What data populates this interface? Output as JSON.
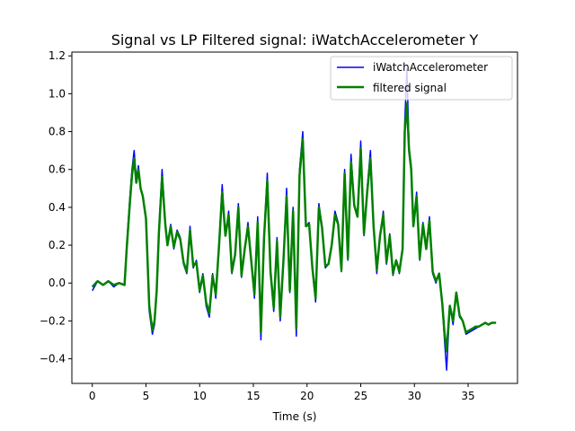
{
  "chart_data": {
    "type": "line",
    "title": "Signal vs LP Filtered signal: iWatchAccelerometer Y",
    "xlabel": "Time (s)",
    "ylabel": "",
    "xlim": [
      -1.9,
      39.6
    ],
    "ylim": [
      -0.53,
      1.22
    ],
    "x_ticks": [
      0,
      5,
      10,
      15,
      20,
      25,
      30,
      35
    ],
    "y_ticks": [
      -0.4,
      -0.2,
      0.0,
      0.2,
      0.4,
      0.6,
      0.8,
      1.0,
      1.2
    ],
    "y_tick_labels": [
      "−0.4",
      "−0.2",
      "0.0",
      "0.2",
      "0.4",
      "0.6",
      "0.8",
      "1.0",
      "1.2"
    ],
    "legend_position": "top-right",
    "grid": false,
    "series": [
      {
        "name": "iWatchAccelerometer",
        "color": "#0000ff",
        "x": [
          0,
          0.5,
          1.0,
          1.5,
          2.0,
          2.5,
          3.0,
          3.2,
          3.5,
          3.7,
          3.9,
          4.1,
          4.3,
          4.5,
          4.7,
          5.0,
          5.3,
          5.6,
          5.8,
          6.0,
          6.2,
          6.5,
          6.8,
          7.0,
          7.3,
          7.6,
          7.9,
          8.2,
          8.5,
          8.8,
          9.1,
          9.4,
          9.7,
          10.0,
          10.3,
          10.6,
          10.9,
          11.2,
          11.5,
          11.8,
          12.1,
          12.4,
          12.7,
          13.0,
          13.3,
          13.6,
          13.9,
          14.2,
          14.5,
          14.8,
          15.1,
          15.4,
          15.7,
          16.0,
          16.3,
          16.6,
          16.9,
          17.2,
          17.5,
          17.8,
          18.1,
          18.4,
          18.7,
          19.0,
          19.3,
          19.6,
          19.9,
          20.2,
          20.5,
          20.8,
          21.1,
          21.4,
          21.7,
          22.0,
          22.3,
          22.6,
          22.9,
          23.2,
          23.5,
          23.8,
          24.1,
          24.4,
          24.7,
          25.0,
          25.3,
          25.6,
          25.9,
          26.2,
          26.5,
          26.8,
          27.1,
          27.4,
          27.7,
          28.0,
          28.3,
          28.6,
          28.9,
          29.1,
          29.3,
          29.5,
          29.7,
          29.9,
          30.2,
          30.5,
          30.8,
          31.1,
          31.4,
          31.7,
          32.0,
          32.3,
          32.6,
          32.8,
          33.0,
          33.3,
          33.6,
          33.9,
          34.2,
          34.5,
          34.8,
          35.1,
          35.4,
          35.7,
          36.0,
          36.3,
          36.6,
          36.9,
          37.2,
          37.6
        ],
        "values": [
          -0.04,
          0.01,
          -0.01,
          0.01,
          -0.02,
          0.0,
          -0.01,
          0.2,
          0.45,
          0.6,
          0.7,
          0.55,
          0.62,
          0.5,
          0.46,
          0.35,
          -0.15,
          -0.27,
          -0.22,
          -0.05,
          0.28,
          0.6,
          0.32,
          0.2,
          0.31,
          0.18,
          0.28,
          0.24,
          0.1,
          0.05,
          0.3,
          0.08,
          0.12,
          -0.05,
          0.05,
          -0.12,
          -0.18,
          0.05,
          -0.08,
          0.2,
          0.52,
          0.25,
          0.38,
          0.05,
          0.15,
          0.42,
          0.03,
          0.18,
          0.32,
          0.12,
          -0.08,
          0.35,
          -0.3,
          0.25,
          0.58,
          0.05,
          -0.15,
          0.24,
          -0.2,
          0.12,
          0.5,
          -0.05,
          0.4,
          -0.28,
          0.6,
          0.8,
          0.3,
          0.32,
          0.07,
          -0.1,
          0.42,
          0.3,
          0.08,
          0.1,
          0.2,
          0.38,
          0.32,
          0.06,
          0.6,
          0.12,
          0.68,
          0.42,
          0.35,
          0.75,
          0.25,
          0.5,
          0.7,
          0.3,
          0.05,
          0.25,
          0.38,
          0.1,
          0.26,
          0.04,
          0.12,
          0.05,
          0.18,
          0.85,
          1.13,
          0.72,
          0.62,
          0.3,
          0.48,
          0.12,
          0.32,
          0.18,
          0.35,
          0.05,
          0.0,
          0.05,
          -0.12,
          -0.3,
          -0.46,
          -0.12,
          -0.22,
          -0.05,
          -0.18,
          -0.2,
          -0.27,
          -0.26,
          -0.25,
          -0.24,
          -0.23,
          -0.22,
          -0.21,
          -0.22,
          -0.21,
          -0.21
        ]
      },
      {
        "name": "filtered signal",
        "color": "#008000",
        "x": [
          0,
          0.5,
          1.0,
          1.5,
          2.0,
          2.5,
          3.0,
          3.2,
          3.5,
          3.7,
          3.9,
          4.1,
          4.3,
          4.5,
          4.7,
          5.0,
          5.3,
          5.6,
          5.8,
          6.0,
          6.2,
          6.5,
          6.8,
          7.0,
          7.3,
          7.6,
          7.9,
          8.2,
          8.5,
          8.8,
          9.1,
          9.4,
          9.7,
          10.0,
          10.3,
          10.6,
          10.9,
          11.2,
          11.5,
          11.8,
          12.1,
          12.4,
          12.7,
          13.0,
          13.3,
          13.6,
          13.9,
          14.2,
          14.5,
          14.8,
          15.1,
          15.4,
          15.7,
          16.0,
          16.3,
          16.6,
          16.9,
          17.2,
          17.5,
          17.8,
          18.1,
          18.4,
          18.7,
          19.0,
          19.3,
          19.6,
          19.9,
          20.2,
          20.5,
          20.8,
          21.1,
          21.4,
          21.7,
          22.0,
          22.3,
          22.6,
          22.9,
          23.2,
          23.5,
          23.8,
          24.1,
          24.4,
          24.7,
          25.0,
          25.3,
          25.6,
          25.9,
          26.2,
          26.5,
          26.8,
          27.1,
          27.4,
          27.7,
          28.0,
          28.3,
          28.6,
          28.9,
          29.1,
          29.3,
          29.5,
          29.7,
          29.9,
          30.2,
          30.5,
          30.8,
          31.1,
          31.4,
          31.7,
          32.0,
          32.3,
          32.6,
          32.8,
          33.0,
          33.3,
          33.6,
          33.9,
          34.2,
          34.5,
          34.8,
          35.1,
          35.4,
          35.7,
          36.0,
          36.3,
          36.6,
          36.9,
          37.2,
          37.6
        ],
        "values": [
          -0.02,
          0.01,
          -0.01,
          0.01,
          -0.01,
          0.0,
          -0.01,
          0.18,
          0.42,
          0.57,
          0.66,
          0.53,
          0.6,
          0.5,
          0.46,
          0.34,
          -0.12,
          -0.25,
          -0.2,
          -0.04,
          0.26,
          0.56,
          0.31,
          0.2,
          0.3,
          0.19,
          0.27,
          0.23,
          0.11,
          0.06,
          0.28,
          0.09,
          0.11,
          -0.04,
          0.04,
          -0.1,
          -0.16,
          0.04,
          -0.06,
          0.19,
          0.48,
          0.25,
          0.36,
          0.06,
          0.15,
          0.4,
          0.04,
          0.18,
          0.3,
          0.12,
          -0.06,
          0.32,
          -0.26,
          0.24,
          0.54,
          0.06,
          -0.13,
          0.22,
          -0.18,
          0.12,
          0.46,
          -0.04,
          0.38,
          -0.24,
          0.57,
          0.76,
          0.3,
          0.31,
          0.08,
          -0.08,
          0.4,
          0.29,
          0.09,
          0.1,
          0.2,
          0.36,
          0.31,
          0.07,
          0.58,
          0.13,
          0.64,
          0.41,
          0.35,
          0.71,
          0.26,
          0.48,
          0.66,
          0.3,
          0.07,
          0.25,
          0.36,
          0.11,
          0.25,
          0.05,
          0.12,
          0.06,
          0.18,
          0.8,
          0.95,
          0.7,
          0.6,
          0.3,
          0.46,
          0.13,
          0.31,
          0.18,
          0.33,
          0.06,
          0.01,
          0.05,
          -0.11,
          -0.26,
          -0.36,
          -0.12,
          -0.2,
          -0.05,
          -0.17,
          -0.2,
          -0.26,
          -0.25,
          -0.24,
          -0.23,
          -0.23,
          -0.22,
          -0.21,
          -0.22,
          -0.21,
          -0.21
        ]
      }
    ]
  }
}
